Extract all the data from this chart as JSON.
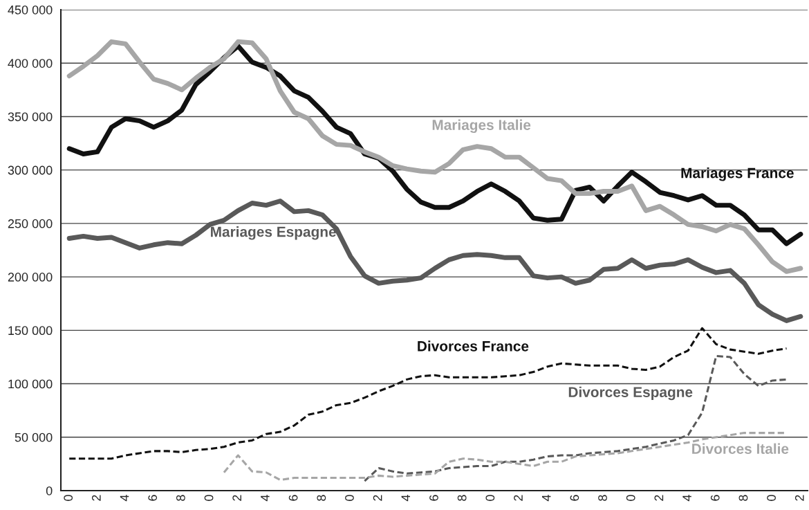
{
  "chart_data": {
    "type": "line",
    "categories": [
      "0",
      null,
      "2",
      null,
      "4",
      null,
      "6",
      null,
      "8",
      null,
      "0",
      null,
      "2",
      null,
      "4",
      null,
      "6",
      null,
      "8",
      null,
      "0",
      null,
      "2",
      null,
      "4",
      null,
      "6",
      null,
      "8",
      null,
      "0",
      null,
      "2",
      null,
      "4",
      null,
      "6",
      null,
      "8",
      null,
      "0",
      null,
      "2",
      null,
      "4",
      null,
      "6",
      null,
      "8",
      null,
      "0",
      null,
      "2"
    ],
    "ylim": [
      0,
      450000
    ],
    "yticks": [
      {
        "value": 0,
        "label": "0"
      },
      {
        "value": 50000,
        "label": "50 000"
      },
      {
        "value": 100000,
        "label": "100 000"
      },
      {
        "value": 150000,
        "label": "150 000"
      },
      {
        "value": 200000,
        "label": "200 000"
      },
      {
        "value": 250000,
        "label": "250 000"
      },
      {
        "value": 300000,
        "label": "300 000"
      },
      {
        "value": 350000,
        "label": "350 000"
      },
      {
        "value": 400000,
        "label": "400 000"
      },
      {
        "value": 450000,
        "label": "450 000"
      }
    ],
    "grid": "y",
    "legend": false,
    "series": [
      {
        "name": "Mariages France",
        "color": "#111111",
        "line_style": "solid",
        "values": [
          320000,
          315000,
          317000,
          340000,
          348000,
          346000,
          340000,
          346000,
          356000,
          380000,
          392000,
          405000,
          416000,
          401000,
          396000,
          388000,
          374000,
          368000,
          355000,
          340000,
          334000,
          315000,
          311000,
          299000,
          282000,
          270000,
          265000,
          265000,
          271000,
          280000,
          287000,
          280000,
          271000,
          255000,
          253000,
          254000,
          281000,
          284000,
          271000,
          285000,
          298000,
          289000,
          279000,
          276000,
          272000,
          276000,
          267000,
          267000,
          258000,
          244000,
          244000,
          231000,
          240000
        ]
      },
      {
        "name": "Mariages Italie",
        "color": "#a6a6a6",
        "line_style": "solid",
        "values": [
          388000,
          397000,
          407000,
          420000,
          418000,
          401000,
          385000,
          381000,
          375000,
          386000,
          396000,
          404000,
          420000,
          419000,
          404000,
          374000,
          354000,
          348000,
          332000,
          324000,
          323000,
          317000,
          312000,
          304000,
          301000,
          299000,
          298000,
          306000,
          319000,
          322000,
          320000,
          312000,
          312000,
          302000,
          292000,
          290000,
          278000,
          278000,
          280000,
          280000,
          285000,
          262000,
          266000,
          258000,
          249000,
          247000,
          243000,
          249000,
          245000,
          230000,
          214000,
          205000,
          208000
        ]
      },
      {
        "name": "Mariages Espagne",
        "color": "#595959",
        "line_style": "solid",
        "values": [
          236000,
          238000,
          236000,
          237000,
          232000,
          227000,
          230000,
          232000,
          231000,
          239000,
          249000,
          253000,
          262000,
          269000,
          267000,
          271000,
          261000,
          262000,
          258000,
          245000,
          219000,
          201000,
          194000,
          196000,
          197000,
          199000,
          208000,
          216000,
          220000,
          221000,
          220000,
          218000,
          218000,
          201000,
          199000,
          200000,
          194000,
          197000,
          207000,
          208000,
          216000,
          208000,
          211000,
          212000,
          216000,
          209000,
          204000,
          206000,
          194000,
          174000,
          165000,
          159000,
          163000
        ]
      },
      {
        "name": "Divorces France",
        "color": "#111111",
        "line_style": "dashed",
        "values": [
          30000,
          30000,
          30000,
          30000,
          33000,
          35000,
          37000,
          37000,
          36000,
          38000,
          39000,
          41000,
          45000,
          47000,
          53000,
          55000,
          61000,
          71000,
          74000,
          80000,
          82000,
          87000,
          93000,
          98000,
          104000,
          107000,
          108000,
          106000,
          106000,
          106000,
          106000,
          107000,
          108000,
          111000,
          116000,
          119000,
          118000,
          117000,
          117000,
          117000,
          114000,
          113000,
          116000,
          125000,
          131000,
          152000,
          137000,
          132000,
          130000,
          128000,
          131000,
          133000,
          null
        ]
      },
      {
        "name": "Divorces Espagne",
        "color": "#595959",
        "line_style": "dashed",
        "values": [
          null,
          null,
          null,
          null,
          null,
          null,
          null,
          null,
          null,
          null,
          null,
          null,
          null,
          null,
          null,
          null,
          null,
          null,
          null,
          null,
          null,
          9000,
          21000,
          18000,
          16000,
          17000,
          18000,
          21000,
          22000,
          23000,
          23000,
          27000,
          27000,
          29000,
          32000,
          33000,
          33000,
          35000,
          36000,
          37000,
          39000,
          41000,
          44000,
          47000,
          52000,
          73000,
          126000,
          125000,
          109000,
          98000,
          103000,
          104000,
          null
        ]
      },
      {
        "name": "Divorces Italie",
        "color": "#a6a6a6",
        "line_style": "dashed",
        "values": [
          null,
          null,
          null,
          null,
          null,
          null,
          null,
          null,
          null,
          null,
          null,
          17000,
          33000,
          18000,
          17000,
          10000,
          12000,
          12000,
          12000,
          12000,
          12000,
          12000,
          14000,
          13000,
          14000,
          15000,
          16000,
          27000,
          30000,
          29000,
          27000,
          27000,
          25000,
          23000,
          27000,
          27000,
          32000,
          33000,
          34000,
          35000,
          37000,
          39000,
          41000,
          43000,
          45000,
          48000,
          50000,
          52000,
          54000,
          54000,
          54000,
          54000,
          null
        ]
      }
    ]
  }
}
